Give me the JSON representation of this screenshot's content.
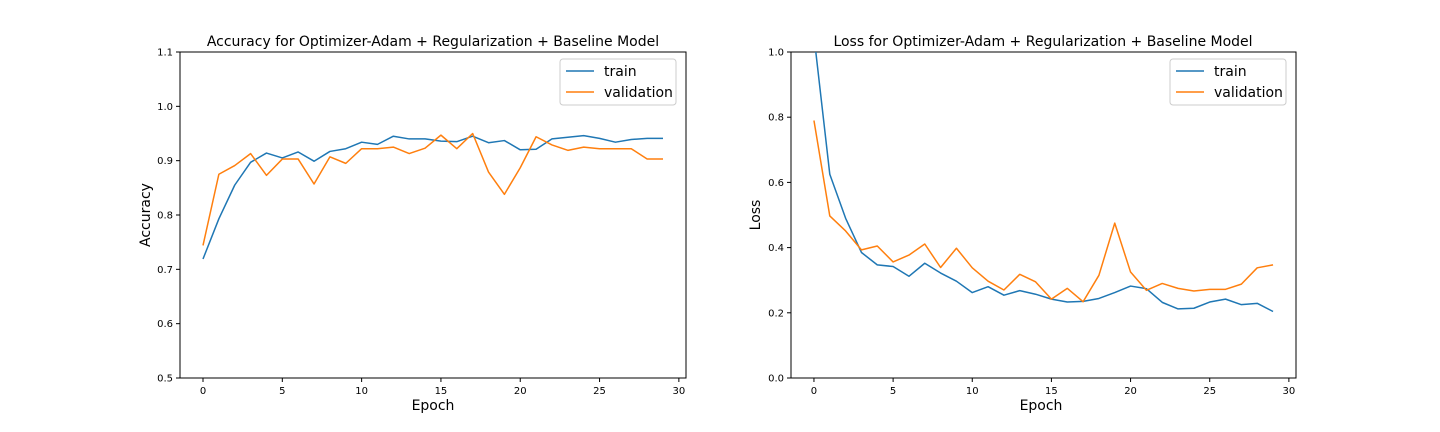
{
  "chart_data": [
    {
      "type": "line",
      "title": "Accuracy for Optimizer-Adam + Regularization + Baseline Model",
      "xlabel": "Epoch",
      "ylabel": "Accuracy",
      "xlim": [
        -1.45,
        30.45
      ],
      "ylim": [
        0.5,
        1.1
      ],
      "xticks": [
        0,
        5,
        10,
        15,
        20,
        25,
        30
      ],
      "yticks": [
        0.5,
        0.6,
        0.7,
        0.8,
        0.9,
        1.0,
        1.1
      ],
      "ytick_labels": [
        "0.5",
        "0.6",
        "0.7",
        "0.8",
        "0.9",
        "1.0",
        "1.1"
      ],
      "grid": false,
      "legend": "upper right",
      "x": [
        0,
        1,
        2,
        3,
        4,
        5,
        6,
        7,
        8,
        9,
        10,
        11,
        12,
        13,
        14,
        15,
        16,
        17,
        18,
        19,
        20,
        21,
        22,
        23,
        24,
        25,
        26,
        27,
        28,
        29
      ],
      "series": [
        {
          "name": "train",
          "color": "#1f77b4",
          "values": [
            0.719,
            0.793,
            0.855,
            0.897,
            0.914,
            0.905,
            0.916,
            0.899,
            0.917,
            0.922,
            0.934,
            0.93,
            0.945,
            0.94,
            0.94,
            0.936,
            0.935,
            0.945,
            0.933,
            0.937,
            0.92,
            0.921,
            0.94,
            0.943,
            0.946,
            0.941,
            0.934,
            0.939,
            0.941,
            0.941
          ]
        },
        {
          "name": "validation",
          "color": "#ff7f0e",
          "values": [
            0.744,
            0.875,
            0.891,
            0.913,
            0.873,
            0.903,
            0.903,
            0.857,
            0.907,
            0.895,
            0.922,
            0.922,
            0.925,
            0.913,
            0.923,
            0.947,
            0.922,
            0.95,
            0.879,
            0.838,
            0.887,
            0.944,
            0.929,
            0.919,
            0.925,
            0.922,
            0.922,
            0.922,
            0.903,
            0.903
          ]
        }
      ]
    },
    {
      "type": "line",
      "title": "Loss for Optimizer-Adam + Regularization + Baseline Model",
      "xlabel": "Epoch",
      "ylabel": "Loss",
      "xlim": [
        -1.45,
        30.45
      ],
      "ylim": [
        0.0,
        1.0
      ],
      "xticks": [
        0,
        5,
        10,
        15,
        20,
        25,
        30
      ],
      "yticks": [
        0.0,
        0.2,
        0.4,
        0.6,
        0.8,
        1.0
      ],
      "ytick_labels": [
        "0.0",
        "0.2",
        "0.4",
        "0.6",
        "0.8",
        "1.0"
      ],
      "grid": false,
      "legend": "upper right",
      "x": [
        0,
        1,
        2,
        3,
        4,
        5,
        6,
        7,
        8,
        9,
        10,
        11,
        12,
        13,
        14,
        15,
        16,
        17,
        18,
        19,
        20,
        21,
        22,
        23,
        24,
        25,
        26,
        27,
        28,
        29
      ],
      "series": [
        {
          "name": "train",
          "color": "#1f77b4",
          "values": [
            1.05,
            0.625,
            0.49,
            0.385,
            0.347,
            0.342,
            0.312,
            0.352,
            0.322,
            0.297,
            0.262,
            0.28,
            0.254,
            0.268,
            0.257,
            0.242,
            0.233,
            0.235,
            0.244,
            0.262,
            0.282,
            0.274,
            0.232,
            0.212,
            0.214,
            0.233,
            0.242,
            0.225,
            0.229,
            0.204
          ]
        },
        {
          "name": "validation",
          "color": "#ff7f0e",
          "values": [
            0.79,
            0.497,
            0.451,
            0.393,
            0.405,
            0.356,
            0.377,
            0.411,
            0.339,
            0.398,
            0.338,
            0.297,
            0.27,
            0.318,
            0.295,
            0.242,
            0.275,
            0.234,
            0.315,
            0.475,
            0.325,
            0.269,
            0.29,
            0.275,
            0.267,
            0.272,
            0.272,
            0.288,
            0.338,
            0.347
          ]
        }
      ]
    }
  ]
}
